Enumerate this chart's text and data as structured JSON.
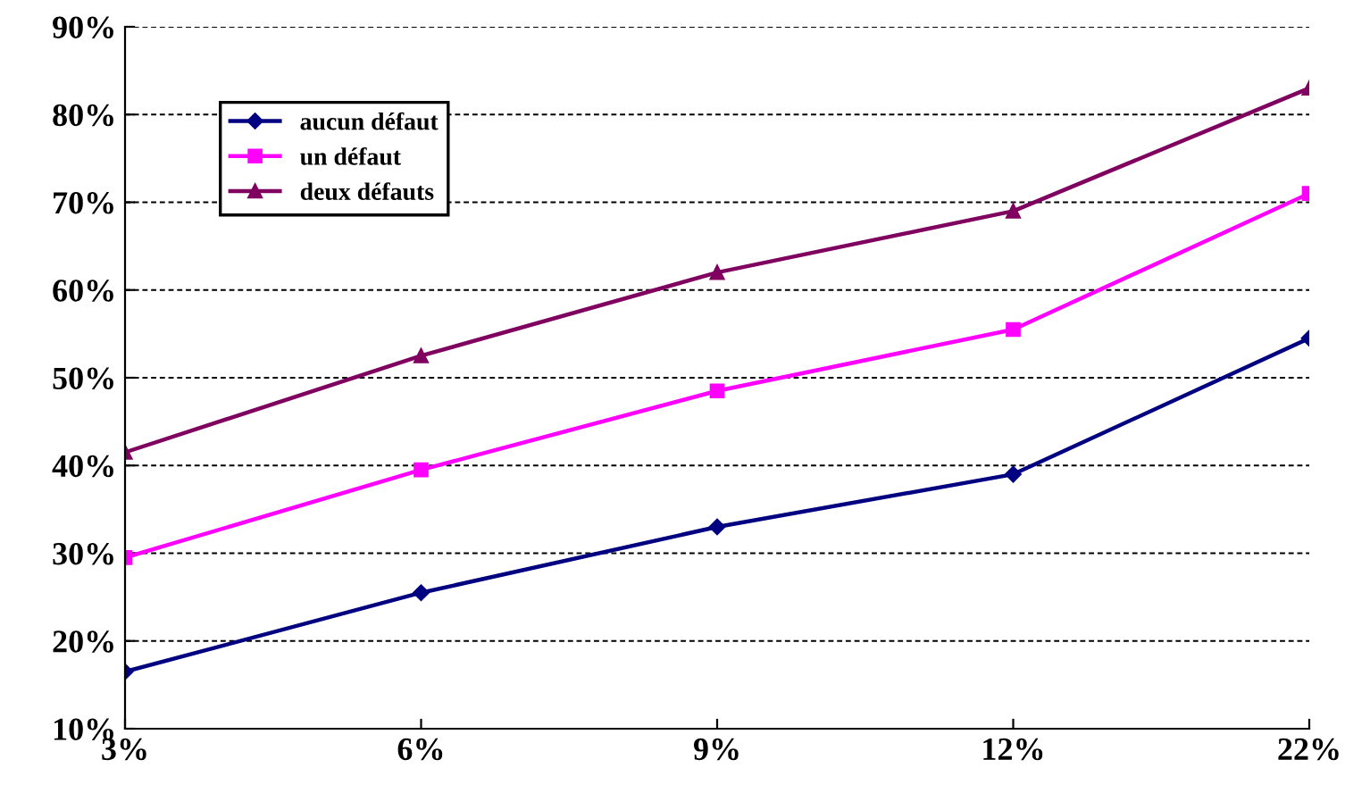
{
  "chart_data": {
    "type": "line",
    "categories": [
      "3%",
      "6%",
      "9%",
      "12%",
      "22%"
    ],
    "series": [
      {
        "name": "aucun défaut",
        "color": "#000080",
        "marker": "diamond",
        "values": [
          16.5,
          25.5,
          33,
          39,
          54.5
        ]
      },
      {
        "name": "un défaut",
        "color": "#ff00ff",
        "marker": "square",
        "values": [
          29.5,
          39.5,
          48.5,
          55.5,
          71
        ]
      },
      {
        "name": "deux défauts",
        "color": "#800060",
        "marker": "triangle",
        "values": [
          41.5,
          52.5,
          62,
          69,
          83
        ]
      }
    ],
    "ylim": [
      10,
      90
    ],
    "yticks": [
      {
        "value": 10,
        "label": "10%"
      },
      {
        "value": 20,
        "label": "20%"
      },
      {
        "value": 30,
        "label": "30%"
      },
      {
        "value": 40,
        "label": "40%"
      },
      {
        "value": 50,
        "label": "50%"
      },
      {
        "value": 60,
        "label": "60%"
      },
      {
        "value": 70,
        "label": "70%"
      },
      {
        "value": 80,
        "label": "80%"
      },
      {
        "value": 90,
        "label": "90%"
      }
    ],
    "grid": "y",
    "legend": "top left",
    "line_style": "solid"
  }
}
